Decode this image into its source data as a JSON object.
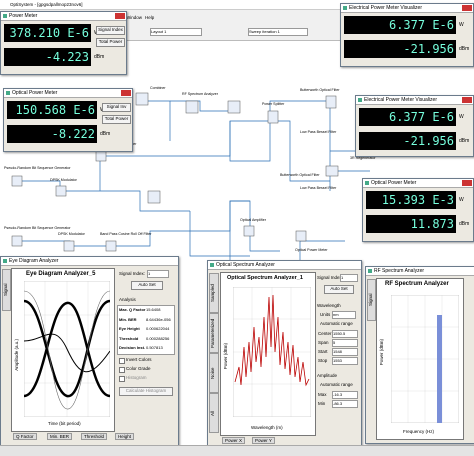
{
  "app": {
    "title": "OptiSystem - [gpgsdpallmop23nov6]",
    "menu": [
      "Window",
      "Help"
    ],
    "layout": "Layout 1",
    "sweep": "Sweep iteration 1"
  },
  "meters": [
    {
      "title": "Power Meter",
      "power_w": "378.210 E-6",
      "unit_w": "W",
      "power_dbm": "-4.223",
      "unit_dbm": "dBm",
      "signal_index": "Signal Index",
      "total": "Total Power"
    },
    {
      "title": "Optical Power Meter",
      "power_w": "150.568 E-6",
      "unit_w": "W",
      "power_dbm": "-8.222",
      "unit_dbm": "dBm",
      "signal_index": "Signal Inv",
      "total": "Total Power"
    },
    {
      "title": "Electrical Power Meter Visualizer",
      "power_w": "6.377 E-6",
      "unit_w": "W",
      "power_dbm": "-21.956",
      "unit_dbm": "dBm"
    },
    {
      "title": "Electrical Power Meter Visualizer",
      "power_w": "6.377 E-6",
      "unit_w": "W",
      "power_dbm": "-21.956",
      "unit_dbm": "dBm"
    },
    {
      "title": "Optical Power Meter",
      "power_w": "15.393 E-3",
      "unit_w": "W",
      "power_dbm": "11.873",
      "unit_dbm": "dBm"
    }
  ],
  "schematic": {
    "labels": [
      "Pseudo-Random Bit Sequence Generator",
      "DPSK Modulator",
      "Band Pass Cosine Roll Off Filter",
      "Combiner",
      "RF Spectrum Analyzer",
      "Power Splitter",
      "Butterworth Optical Filter",
      "Low Pass Bessel Filter",
      "3R Regenerator",
      "Optical Amplifier",
      "Pseudo-Random Bit Sequence Generator",
      "DPSK Modulator",
      "Band Pass Cosine Roll Off Filter",
      "Butterworth Optical Filter",
      "Low Pass Bessel Filter",
      "Optical Power Meter"
    ]
  },
  "eye": {
    "window": "Eye Diagram Analyzer",
    "plot_title": "Eye Diagram Analyzer_5",
    "signal_tab": "Signal",
    "signal_index": "Signal Index:",
    "index_value": "1",
    "auto_set": "Auto Set",
    "analysis": "Analysis",
    "rows": [
      [
        "Max. Q Factor",
        "15.6408"
      ],
      [
        "Min. BER",
        "8.64436e-056"
      ],
      [
        "Eye Height",
        "0.000622044"
      ],
      [
        "Threshold",
        "0.000288256"
      ],
      [
        "Decision Inst.",
        "0.507813"
      ]
    ],
    "checks": [
      "Invert Colors",
      "Color Grade",
      "Histogram"
    ],
    "histogram_btn": "Calculate Histogram",
    "x_label": "Time (bit period)",
    "y_label": "Amplitude (a.u.)",
    "tabs": [
      "Q Factor",
      "Min. BER",
      "Threshold",
      "Height"
    ]
  },
  "osa": {
    "window": "Optical Spectrum Analyzer",
    "plot_title": "Optical Spectrum Analyzer_1",
    "vtabs": [
      "Sampled",
      "Parameterized",
      "Noise",
      "All"
    ],
    "signal_index": "Signal Index",
    "index_value": "1",
    "auto_set": "Auto Set",
    "wavelength": "Wavelength",
    "units": "Units",
    "unit_value": "nm",
    "auto_range": "Automatic range",
    "fields": [
      [
        "Center",
        "1550.5"
      ],
      [
        "Span",
        "5"
      ],
      [
        "Start",
        "1548"
      ],
      [
        "Stop",
        "1553"
      ]
    ],
    "amplitude": "Amplitude",
    "amp_auto": "Automatic range",
    "amp_fields": [
      [
        "Max",
        "-16.3"
      ],
      [
        "Min",
        "-86.3"
      ]
    ],
    "x_label": "Wavelength (m)",
    "y_label": "Power (dBm)",
    "tabs": [
      "Power X",
      "Power Y"
    ]
  },
  "rf": {
    "window": "RF Spectrum Analyzer",
    "plot_title": "RF Spectrum Analyzer",
    "signal_tab": "Signal",
    "x_label": "Frequency (Hz)",
    "y_label": "Power (dBm)"
  }
}
